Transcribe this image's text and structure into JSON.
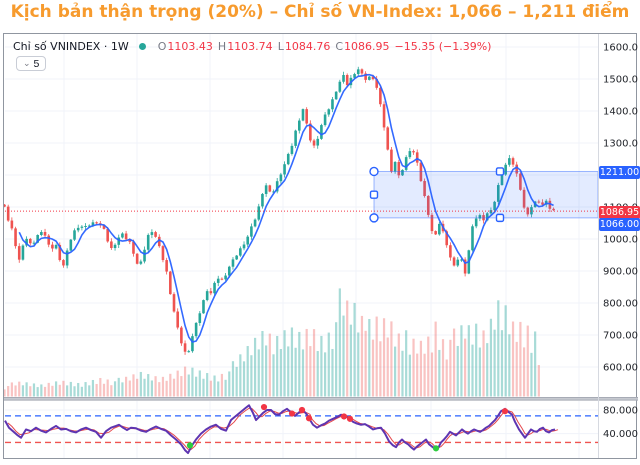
{
  "title": {
    "text": "Kịch bản thận trọng (20%) – Chỉ số VN-Index: 1,066 – 1,211 điểm",
    "color": "#F79B2E"
  },
  "legend": {
    "symbol": "Chỉ số VNINDEX",
    "separator": "·",
    "timeframe": "1W",
    "o_label": "O",
    "o_value": "1103.43",
    "h_label": "H",
    "h_value": "1103.74",
    "l_label": "L",
    "l_value": "1084.76",
    "c_label": "C",
    "c_value": "1086.95",
    "change": "−15.35 (−1.39%)",
    "dot_color": "#26a69a",
    "value_color": "#f23645"
  },
  "toolbar": {
    "ma_button_label": "5"
  },
  "icons": {
    "chevron_down": "⌄"
  },
  "price_axis": {
    "tick_labels": [
      "1600.00",
      "1500.00",
      "1400.00",
      "1300.00",
      "1200.00",
      "1100.00",
      "1000.00",
      "900.00",
      "800.00",
      "700.00",
      "600.00"
    ],
    "badges": [
      {
        "text": "1211.00",
        "bg": "#2962ff",
        "price": 1211.0
      },
      {
        "text": "1086.95",
        "bg": "#f23645",
        "price": 1086.95
      },
      {
        "text": "1066.00",
        "bg": "#2962ff",
        "price": 1066.0
      }
    ]
  },
  "oscillator_axis": {
    "tick_labels": [
      "80.0000",
      "40.0000"
    ],
    "tick_values": [
      80,
      40
    ]
  },
  "colors": {
    "up": "#26a69a",
    "down": "#ef5350",
    "vol_up": "rgba(38,166,154,0.40)",
    "vol_down": "rgba(239,83,80,0.35)",
    "ma_line": "#2962ff",
    "zone_fill": "rgba(41,98,255,0.13)",
    "zone_stroke": "rgba(41,98,255,0.45)",
    "last_price_line": "#f23645",
    "grid": "#f0f3fa",
    "axis_text": "#22252b",
    "separator": "#a7abb5",
    "osc_main": "#5e35b1",
    "osc_signal": "#e5484d",
    "osc_upper_line": "#2962ff",
    "osc_lower_line": "#f05350",
    "sell_dot": "#f23645",
    "buy_dot": "#2ecc40",
    "handle_stroke": "#2962ff"
  },
  "chart_data": {
    "type": "candlestick",
    "symbol": "VNINDEX",
    "timeframe": "1W",
    "ylim": [
      600,
      1600
    ],
    "price_tick_step": 100,
    "last_bar": {
      "open": 1103.43,
      "high": 1103.74,
      "low": 1084.76,
      "close": 1086.95,
      "change": -15.35,
      "change_pct": -1.39
    },
    "highlight_zone": {
      "top": 1211,
      "bottom": 1066
    },
    "last_price_line": 1086.95,
    "price_path": [
      [
        2,
        1130
      ],
      [
        6,
        1065
      ],
      [
        10,
        1040
      ],
      [
        14,
        988
      ],
      [
        18,
        930
      ],
      [
        22,
        985
      ],
      [
        26,
        1002
      ],
      [
        30,
        978
      ],
      [
        34,
        995
      ],
      [
        38,
        1018
      ],
      [
        42,
        1032
      ],
      [
        46,
        990
      ],
      [
        50,
        962
      ],
      [
        54,
        992
      ],
      [
        58,
        945
      ],
      [
        62,
        912
      ],
      [
        66,
        958
      ],
      [
        70,
        1002
      ],
      [
        74,
        1028
      ],
      [
        78,
        1042
      ],
      [
        84,
        1035
      ],
      [
        90,
        1048
      ],
      [
        96,
        1054
      ],
      [
        102,
        1036
      ],
      [
        106,
        1000
      ],
      [
        110,
        968
      ],
      [
        114,
        986
      ],
      [
        118,
        1006
      ],
      [
        122,
        1014
      ],
      [
        126,
        998
      ],
      [
        130,
        985
      ],
      [
        134,
        942
      ],
      [
        138,
        906
      ],
      [
        142,
        948
      ],
      [
        146,
        1002
      ],
      [
        150,
        1030
      ],
      [
        154,
        1012
      ],
      [
        158,
        976
      ],
      [
        162,
        936
      ],
      [
        166,
        892
      ],
      [
        170,
        820
      ],
      [
        174,
        758
      ],
      [
        178,
        700
      ],
      [
        182,
        660
      ],
      [
        186,
        632
      ],
      [
        190,
        682
      ],
      [
        194,
        722
      ],
      [
        198,
        762
      ],
      [
        202,
        802
      ],
      [
        206,
        842
      ],
      [
        210,
        830
      ],
      [
        214,
        862
      ],
      [
        218,
        882
      ],
      [
        222,
        868
      ],
      [
        226,
        902
      ],
      [
        230,
        922
      ],
      [
        234,
        942
      ],
      [
        238,
        962
      ],
      [
        242,
        982
      ],
      [
        246,
        1002
      ],
      [
        250,
        1032
      ],
      [
        254,
        1062
      ],
      [
        258,
        1102
      ],
      [
        262,
        1152
      ],
      [
        266,
        1172
      ],
      [
        270,
        1132
      ],
      [
        274,
        1162
      ],
      [
        278,
        1192
      ],
      [
        282,
        1222
      ],
      [
        286,
        1252
      ],
      [
        290,
        1282
      ],
      [
        294,
        1330
      ],
      [
        298,
        1372
      ],
      [
        302,
        1406
      ],
      [
        306,
        1352
      ],
      [
        310,
        1302
      ],
      [
        314,
        1286
      ],
      [
        318,
        1332
      ],
      [
        322,
        1372
      ],
      [
        326,
        1396
      ],
      [
        330,
        1422
      ],
      [
        334,
        1456
      ],
      [
        338,
        1486
      ],
      [
        342,
        1512
      ],
      [
        346,
        1482
      ],
      [
        350,
        1502
      ],
      [
        354,
        1522
      ],
      [
        358,
        1532
      ],
      [
        362,
        1506
      ],
      [
        366,
        1496
      ],
      [
        370,
        1512
      ],
      [
        374,
        1496
      ],
      [
        378,
        1440
      ],
      [
        382,
        1372
      ],
      [
        386,
        1292
      ],
      [
        390,
        1212
      ],
      [
        394,
        1242
      ],
      [
        398,
        1192
      ],
      [
        402,
        1222
      ],
      [
        406,
        1262
      ],
      [
        410,
        1286
      ],
      [
        414,
        1262
      ],
      [
        418,
        1212
      ],
      [
        422,
        1152
      ],
      [
        426,
        1102
      ],
      [
        430,
        1032
      ],
      [
        434,
        1002
      ],
      [
        438,
        1052
      ],
      [
        442,
        1022
      ],
      [
        446,
        982
      ],
      [
        450,
        935
      ],
      [
        454,
        906
      ],
      [
        458,
        952
      ],
      [
        462,
        922
      ],
      [
        465,
        886
      ],
      [
        468,
        970
      ],
      [
        471,
        1030
      ],
      [
        474,
        1062
      ],
      [
        478,
        1076
      ],
      [
        482,
        1060
      ],
      [
        486,
        1080
      ],
      [
        490,
        1086
      ],
      [
        494,
        1122
      ],
      [
        498,
        1176
      ],
      [
        502,
        1216
      ],
      [
        506,
        1240
      ],
      [
        510,
        1254
      ],
      [
        514,
        1216
      ],
      [
        518,
        1184
      ],
      [
        522,
        1110
      ],
      [
        526,
        1066
      ],
      [
        530,
        1100
      ],
      [
        533,
        1112
      ],
      [
        537,
        1122
      ],
      [
        541,
        1106
      ],
      [
        545,
        1116
      ],
      [
        549,
        1096
      ],
      [
        553,
        1087
      ]
    ],
    "volume_path": [
      [
        2,
        10
      ],
      [
        20,
        12
      ],
      [
        40,
        10
      ],
      [
        60,
        14
      ],
      [
        80,
        12
      ],
      [
        100,
        18
      ],
      [
        120,
        14
      ],
      [
        140,
        20
      ],
      [
        160,
        16
      ],
      [
        175,
        22
      ],
      [
        186,
        28
      ],
      [
        200,
        24
      ],
      [
        215,
        20
      ],
      [
        230,
        26
      ],
      [
        240,
        34
      ],
      [
        250,
        44
      ],
      [
        258,
        52
      ],
      [
        266,
        58
      ],
      [
        272,
        48
      ],
      [
        280,
        56
      ],
      [
        290,
        62
      ],
      [
        300,
        58
      ],
      [
        310,
        66
      ],
      [
        320,
        58
      ],
      [
        330,
        64
      ],
      [
        336,
        76
      ],
      [
        340,
        87
      ],
      [
        344,
        80
      ],
      [
        348,
        72
      ],
      [
        352,
        78
      ],
      [
        356,
        70
      ],
      [
        360,
        64
      ],
      [
        365,
        72
      ],
      [
        370,
        60
      ],
      [
        375,
        68
      ],
      [
        380,
        62
      ],
      [
        385,
        70
      ],
      [
        390,
        66
      ],
      [
        395,
        58
      ],
      [
        400,
        54
      ],
      [
        405,
        60
      ],
      [
        410,
        50
      ],
      [
        415,
        56
      ],
      [
        420,
        52
      ],
      [
        425,
        58
      ],
      [
        430,
        56
      ],
      [
        435,
        74
      ],
      [
        440,
        60
      ],
      [
        445,
        52
      ],
      [
        450,
        58
      ],
      [
        455,
        50
      ],
      [
        460,
        56
      ],
      [
        465,
        62
      ],
      [
        470,
        54
      ],
      [
        475,
        60
      ],
      [
        480,
        52
      ],
      [
        485,
        58
      ],
      [
        490,
        66
      ],
      [
        494,
        78
      ],
      [
        498,
        84
      ],
      [
        502,
        76
      ],
      [
        506,
        82
      ],
      [
        510,
        70
      ],
      [
        514,
        64
      ],
      [
        518,
        72
      ],
      [
        522,
        60
      ],
      [
        526,
        68
      ],
      [
        530,
        56
      ],
      [
        534,
        62
      ],
      [
        537,
        48
      ],
      [
        540,
        26
      ]
    ],
    "oscillator": {
      "upper_band": 70,
      "lower_band": 25,
      "path": [
        [
          4,
          62
        ],
        [
          8,
          50
        ],
        [
          12,
          44
        ],
        [
          16,
          38
        ],
        [
          20,
          33
        ],
        [
          25,
          47
        ],
        [
          30,
          44
        ],
        [
          35,
          50
        ],
        [
          40,
          45
        ],
        [
          45,
          42
        ],
        [
          50,
          48
        ],
        [
          55,
          53
        ],
        [
          60,
          47
        ],
        [
          65,
          48
        ],
        [
          70,
          44
        ],
        [
          75,
          42
        ],
        [
          80,
          47
        ],
        [
          85,
          50
        ],
        [
          90,
          46
        ],
        [
          95,
          43
        ],
        [
          100,
          33
        ],
        [
          105,
          44
        ],
        [
          110,
          50
        ],
        [
          115,
          53
        ],
        [
          118,
          55
        ],
        [
          122,
          50
        ],
        [
          126,
          46
        ],
        [
          130,
          50
        ],
        [
          135,
          49
        ],
        [
          140,
          45
        ],
        [
          145,
          43
        ],
        [
          150,
          48
        ],
        [
          155,
          52
        ],
        [
          160,
          48
        ],
        [
          165,
          45
        ],
        [
          170,
          37
        ],
        [
          175,
          30
        ],
        [
          180,
          22
        ],
        [
          184,
          12
        ],
        [
          187,
          7
        ],
        [
          191,
          20
        ],
        [
          195,
          30
        ],
        [
          200,
          40
        ],
        [
          205,
          47
        ],
        [
          210,
          52
        ],
        [
          215,
          55
        ],
        [
          220,
          48
        ],
        [
          225,
          45
        ],
        [
          230,
          63
        ],
        [
          235,
          70
        ],
        [
          240,
          77
        ],
        [
          245,
          84
        ],
        [
          248,
          88
        ],
        [
          252,
          75
        ],
        [
          255,
          63
        ],
        [
          258,
          68
        ],
        [
          262,
          75
        ],
        [
          266,
          80
        ],
        [
          270,
          80
        ],
        [
          274,
          73
        ],
        [
          278,
          72
        ],
        [
          282,
          78
        ],
        [
          286,
          82
        ],
        [
          290,
          76
        ],
        [
          294,
          70
        ],
        [
          298,
          76
        ],
        [
          302,
          80
        ],
        [
          306,
          72
        ],
        [
          308,
          66
        ],
        [
          312,
          55
        ],
        [
          316,
          50
        ],
        [
          320,
          54
        ],
        [
          324,
          57
        ],
        [
          328,
          62
        ],
        [
          332,
          65
        ],
        [
          336,
          68
        ],
        [
          340,
          72
        ],
        [
          344,
          70
        ],
        [
          348,
          66
        ],
        [
          352,
          60
        ],
        [
          356,
          57
        ],
        [
          360,
          55
        ],
        [
          364,
          56
        ],
        [
          368,
          52
        ],
        [
          372,
          47
        ],
        [
          376,
          49
        ],
        [
          380,
          50
        ],
        [
          384,
          40
        ],
        [
          388,
          27
        ],
        [
          392,
          20
        ],
        [
          395,
          17
        ],
        [
          398,
          25
        ],
        [
          401,
          30
        ],
        [
          404,
          25
        ],
        [
          407,
          22
        ],
        [
          410,
          17
        ],
        [
          413,
          13
        ],
        [
          416,
          18
        ],
        [
          419,
          22
        ],
        [
          422,
          26
        ],
        [
          425,
          30
        ],
        [
          428,
          22
        ],
        [
          431,
          18
        ],
        [
          434,
          14
        ],
        [
          437,
          15
        ],
        [
          440,
          25
        ],
        [
          443,
          30
        ],
        [
          446,
          36
        ],
        [
          449,
          43
        ],
        [
          452,
          40
        ],
        [
          455,
          37
        ],
        [
          458,
          42
        ],
        [
          461,
          47
        ],
        [
          464,
          43
        ],
        [
          467,
          40
        ],
        [
          470,
          44
        ],
        [
          473,
          47
        ],
        [
          476,
          45
        ],
        [
          479,
          43
        ],
        [
          482,
          46
        ],
        [
          485,
          50
        ],
        [
          488,
          53
        ],
        [
          491,
          58
        ],
        [
          494,
          63
        ],
        [
          497,
          70
        ],
        [
          500,
          78
        ],
        [
          504,
          82
        ],
        [
          508,
          76
        ],
        [
          511,
          72
        ],
        [
          514,
          60
        ],
        [
          518,
          47
        ],
        [
          521,
          40
        ],
        [
          524,
          33
        ],
        [
          527,
          40
        ],
        [
          530,
          47
        ],
        [
          533,
          44
        ],
        [
          536,
          43
        ],
        [
          539,
          48
        ],
        [
          542,
          50
        ],
        [
          545,
          44
        ],
        [
          548,
          42
        ],
        [
          551,
          46
        ],
        [
          554,
          47
        ]
      ],
      "sell_dots": [
        [
          263,
          85
        ],
        [
          291,
          74
        ],
        [
          301,
          80
        ],
        [
          308,
          66
        ],
        [
          343,
          69
        ],
        [
          349,
          65
        ],
        [
          504,
          78
        ]
      ],
      "buy_dots": [
        [
          189,
          20
        ],
        [
          435,
          15
        ]
      ]
    }
  }
}
